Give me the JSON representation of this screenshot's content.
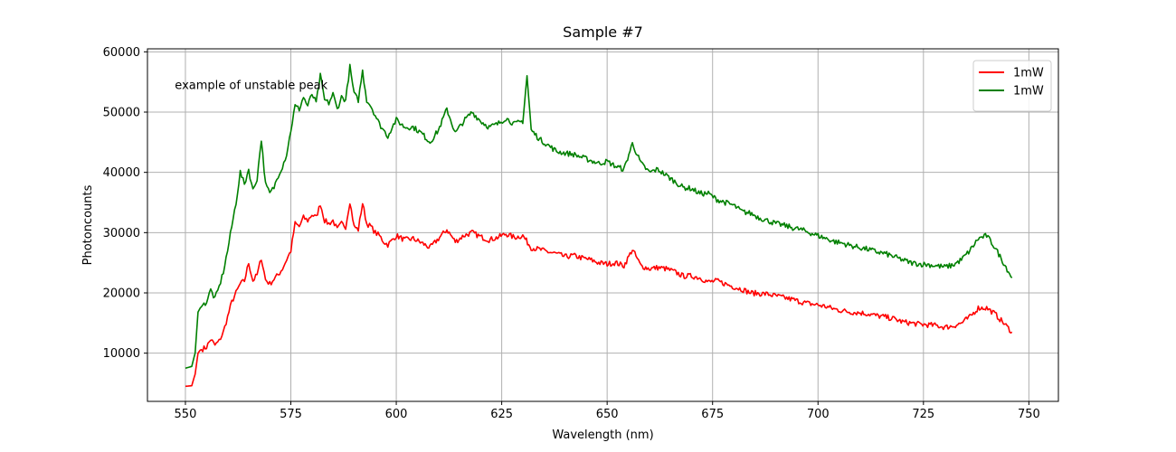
{
  "chart_data": {
    "type": "line",
    "title": "Sample #7",
    "xlabel": "Wavelength (nm)",
    "ylabel": "Photoncounts",
    "xlim": [
      541,
      757
    ],
    "ylim": [
      2000,
      60500
    ],
    "xticks": [
      550,
      575,
      600,
      625,
      650,
      675,
      700,
      725,
      750
    ],
    "yticks": [
      10000,
      20000,
      30000,
      40000,
      50000,
      60000
    ],
    "grid": true,
    "legend_position": "top-right",
    "annotation": {
      "text": "example of unstable peak",
      "x": 547.5,
      "y": 54500
    },
    "series": [
      {
        "name": "1mW",
        "color": "#ff0000",
        "x": [
          550,
          551.5,
          552.3,
          553,
          553.5,
          555,
          556,
          557,
          558,
          559,
          560,
          561,
          562,
          563,
          564,
          565,
          566,
          567,
          568,
          569,
          570,
          571,
          572,
          573,
          574,
          575,
          576,
          577,
          578,
          579,
          580,
          581,
          582,
          583,
          584,
          585,
          586,
          587,
          588,
          589,
          590,
          591,
          592,
          593,
          594,
          595,
          596,
          597,
          598,
          599,
          600,
          602,
          604,
          606,
          608,
          610,
          612,
          614,
          616,
          618,
          620,
          622,
          624,
          626,
          628,
          630,
          632,
          634,
          636,
          638,
          640,
          642,
          644,
          646,
          648,
          650,
          652,
          654,
          656,
          658,
          660,
          662,
          664,
          666,
          668,
          670,
          672,
          674,
          676,
          678,
          680,
          682,
          684,
          686,
          688,
          690,
          692,
          694,
          696,
          698,
          700,
          702,
          704,
          706,
          708,
          710,
          712,
          714,
          716,
          718,
          720,
          722,
          724,
          726,
          728,
          730,
          732,
          734,
          736,
          738,
          740,
          742,
          744,
          746
        ],
        "y": [
          4500,
          4600,
          6500,
          10000,
          10500,
          11000,
          12300,
          11300,
          12000,
          13500,
          16000,
          18500,
          20000,
          21500,
          22000,
          25000,
          22000,
          23000,
          25800,
          22200,
          21500,
          22300,
          23000,
          24000,
          25500,
          27000,
          31500,
          31000,
          32500,
          32000,
          33000,
          32500,
          34800,
          32000,
          31500,
          32000,
          30500,
          31500,
          31000,
          35200,
          31000,
          30500,
          34900,
          31500,
          31000,
          30000,
          29500,
          28500,
          28000,
          28700,
          29500,
          28800,
          29000,
          28300,
          27500,
          29000,
          30500,
          28500,
          29500,
          30000,
          29300,
          28800,
          29200,
          29800,
          29200,
          29500,
          27500,
          27200,
          26800,
          26500,
          26000,
          26200,
          25800,
          25500,
          25000,
          24800,
          25000,
          24500,
          27200,
          24500,
          24000,
          24200,
          24000,
          23500,
          22800,
          22800,
          22500,
          21800,
          22000,
          21500,
          21000,
          20600,
          20000,
          19900,
          19800,
          19500,
          19200,
          18900,
          18500,
          18200,
          18000,
          17700,
          17300,
          17000,
          16800,
          16700,
          16500,
          16200,
          16000,
          15700,
          15200,
          15000,
          14800,
          14700,
          14600,
          14300,
          14500,
          15000,
          16000,
          17500,
          17500,
          16500,
          15000,
          13500
        ]
      },
      {
        "name": "1mW",
        "color": "#008000",
        "x": [
          550,
          551.5,
          552.3,
          553,
          553.5,
          555,
          556,
          557,
          558,
          559,
          560,
          561,
          562,
          563,
          564,
          565,
          566,
          567,
          568,
          569,
          570,
          571,
          572,
          573,
          574,
          575,
          576,
          577,
          578,
          579,
          580,
          581,
          582,
          583,
          584,
          585,
          586,
          587,
          588,
          589,
          590,
          591,
          592,
          593,
          594,
          595,
          596,
          597,
          598,
          599,
          600,
          602,
          604,
          606,
          608,
          610,
          612,
          614,
          616,
          618,
          620,
          622,
          624,
          626,
          628,
          630,
          631,
          632,
          634,
          636,
          638,
          640,
          642,
          644,
          646,
          648,
          650,
          652,
          654,
          656,
          658,
          660,
          662,
          664,
          666,
          668,
          670,
          672,
          674,
          676,
          678,
          680,
          682,
          684,
          686,
          688,
          690,
          692,
          694,
          696,
          698,
          700,
          702,
          704,
          706,
          708,
          710,
          712,
          714,
          716,
          718,
          720,
          722,
          724,
          726,
          728,
          730,
          732,
          734,
          736,
          738,
          740,
          742,
          744,
          746
        ],
        "y": [
          7500,
          7800,
          10000,
          16800,
          17500,
          18500,
          20500,
          19000,
          21000,
          23500,
          27000,
          31000,
          35000,
          40000,
          38000,
          40500,
          37000,
          39000,
          45500,
          38000,
          36500,
          37500,
          39500,
          41000,
          43000,
          47000,
          51000,
          50500,
          52500,
          51000,
          53000,
          51500,
          56000,
          52000,
          51500,
          53000,
          50500,
          52500,
          52000,
          57500,
          53000,
          52000,
          56800,
          52000,
          51000,
          49500,
          48000,
          47000,
          46000,
          47500,
          48700,
          47500,
          47500,
          46500,
          45000,
          47000,
          50500,
          46500,
          48500,
          50000,
          48500,
          47500,
          48000,
          49000,
          48000,
          48500,
          56000,
          47000,
          45500,
          44500,
          43500,
          43200,
          43000,
          42500,
          42000,
          41500,
          41800,
          41000,
          40500,
          44800,
          41500,
          40000,
          40500,
          39500,
          38500,
          37500,
          37300,
          36500,
          36500,
          35500,
          35000,
          34500,
          33500,
          33200,
          32500,
          32000,
          31500,
          31200,
          30800,
          30500,
          30000,
          29500,
          29000,
          28500,
          28200,
          27800,
          27500,
          27200,
          26800,
          26500,
          26000,
          25500,
          25000,
          24800,
          24700,
          24500,
          24300,
          24600,
          25500,
          27000,
          29000,
          29500,
          27500,
          25000,
          22500
        ]
      }
    ]
  }
}
